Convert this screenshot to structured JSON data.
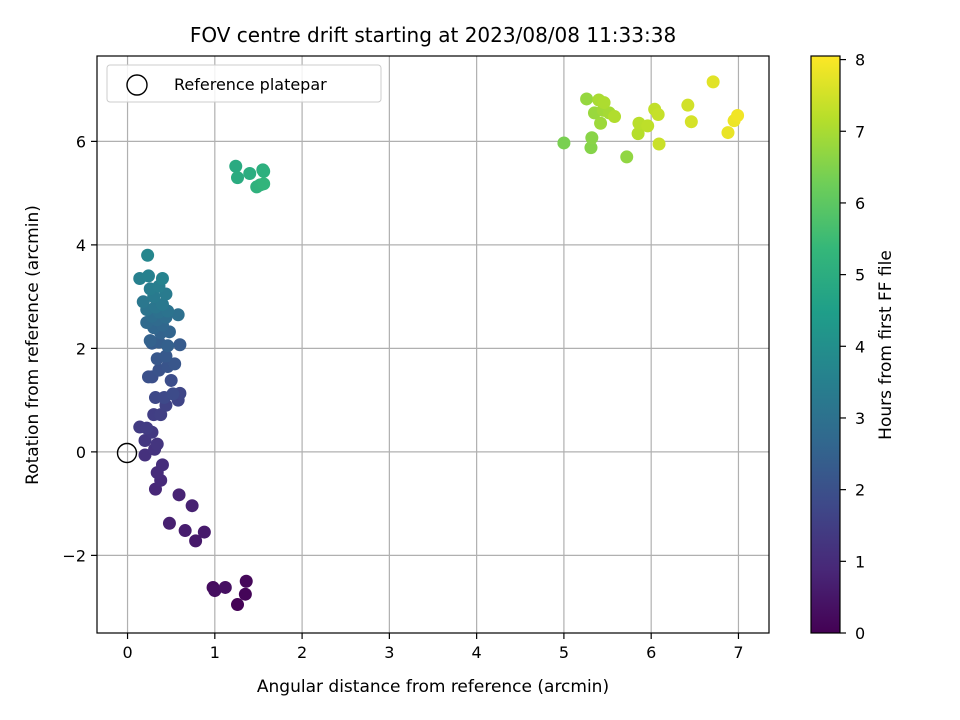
{
  "chart_data": {
    "type": "scatter",
    "title": "FOV centre drift starting at 2023/08/08 11:33:38",
    "xlabel": "Angular distance from reference (arcmin)",
    "ylabel": "Rotation from reference (arcmin)",
    "xlim": [
      -0.35,
      7.35
    ],
    "ylim": [
      -3.5,
      7.65
    ],
    "xticks": [
      0,
      1,
      2,
      3,
      4,
      5,
      6,
      7
    ],
    "yticks": [
      -2,
      0,
      2,
      4,
      6
    ],
    "xtick_labels": [
      "0",
      "1",
      "2",
      "3",
      "4",
      "5",
      "6",
      "7"
    ],
    "ytick_labels": [
      "−2",
      "0",
      "2",
      "4",
      "6"
    ],
    "grid": true,
    "legend": {
      "position": "top-left",
      "entries": [
        "Reference platepar"
      ]
    },
    "reference": {
      "x": 0,
      "y": 0,
      "label": "Reference platepar"
    },
    "colorbar": {
      "label": "Hours from first FF file",
      "min": 0,
      "max": 8.05,
      "ticks": [
        0,
        1,
        2,
        3,
        4,
        5,
        6,
        7,
        8
      ],
      "tick_labels": [
        "0",
        "1",
        "2",
        "3",
        "4",
        "5",
        "6",
        "7",
        "8"
      ],
      "colormap": "viridis"
    },
    "points": [
      {
        "x": 1.26,
        "y": -2.95,
        "t": 0.05
      },
      {
        "x": 1.35,
        "y": -2.75,
        "t": 0.1
      },
      {
        "x": 1.36,
        "y": -2.5,
        "t": 0.15
      },
      {
        "x": 0.98,
        "y": -2.62,
        "t": 0.25
      },
      {
        "x": 1.0,
        "y": -2.68,
        "t": 0.3
      },
      {
        "x": 1.12,
        "y": -2.62,
        "t": 0.35
      },
      {
        "x": 0.78,
        "y": -1.72,
        "t": 0.55
      },
      {
        "x": 0.88,
        "y": -1.55,
        "t": 0.6
      },
      {
        "x": 0.66,
        "y": -1.52,
        "t": 0.65
      },
      {
        "x": 0.48,
        "y": -1.38,
        "t": 0.7
      },
      {
        "x": 0.74,
        "y": -1.04,
        "t": 0.75
      },
      {
        "x": 0.59,
        "y": -0.83,
        "t": 0.8
      },
      {
        "x": 0.32,
        "y": -0.72,
        "t": 0.9
      },
      {
        "x": 0.38,
        "y": -0.55,
        "t": 0.95
      },
      {
        "x": 0.34,
        "y": -0.4,
        "t": 1.0
      },
      {
        "x": 0.4,
        "y": -0.25,
        "t": 1.05
      },
      {
        "x": 0.2,
        "y": -0.06,
        "t": 1.15
      },
      {
        "x": 0.31,
        "y": 0.05,
        "t": 1.2
      },
      {
        "x": 0.34,
        "y": 0.15,
        "t": 1.25
      },
      {
        "x": 0.2,
        "y": 0.22,
        "t": 1.3
      },
      {
        "x": 0.28,
        "y": 0.38,
        "t": 1.35
      },
      {
        "x": 0.14,
        "y": 0.48,
        "t": 1.4
      },
      {
        "x": 0.22,
        "y": 0.46,
        "t": 1.45
      },
      {
        "x": 0.3,
        "y": 0.72,
        "t": 1.5
      },
      {
        "x": 0.38,
        "y": 0.72,
        "t": 1.55
      },
      {
        "x": 0.44,
        "y": 0.9,
        "t": 1.6
      },
      {
        "x": 0.58,
        "y": 1.0,
        "t": 1.65
      },
      {
        "x": 0.6,
        "y": 1.13,
        "t": 1.7
      },
      {
        "x": 0.32,
        "y": 1.05,
        "t": 1.75
      },
      {
        "x": 0.42,
        "y": 1.05,
        "t": 1.8
      },
      {
        "x": 0.52,
        "y": 1.12,
        "t": 1.85
      },
      {
        "x": 0.5,
        "y": 1.38,
        "t": 1.9
      },
      {
        "x": 0.28,
        "y": 1.45,
        "t": 1.95
      },
      {
        "x": 0.24,
        "y": 1.45,
        "t": 2.0
      },
      {
        "x": 0.36,
        "y": 1.58,
        "t": 2.05
      },
      {
        "x": 0.46,
        "y": 1.65,
        "t": 2.1
      },
      {
        "x": 0.54,
        "y": 1.7,
        "t": 2.15
      },
      {
        "x": 0.34,
        "y": 1.8,
        "t": 2.2
      },
      {
        "x": 0.44,
        "y": 1.85,
        "t": 2.25
      },
      {
        "x": 0.6,
        "y": 2.07,
        "t": 2.3
      },
      {
        "x": 0.28,
        "y": 2.1,
        "t": 2.35
      },
      {
        "x": 0.36,
        "y": 2.12,
        "t": 2.4
      },
      {
        "x": 0.46,
        "y": 2.05,
        "t": 2.45
      },
      {
        "x": 0.26,
        "y": 2.15,
        "t": 2.5
      },
      {
        "x": 0.38,
        "y": 2.3,
        "t": 2.55
      },
      {
        "x": 0.48,
        "y": 2.32,
        "t": 2.6
      },
      {
        "x": 0.3,
        "y": 2.4,
        "t": 2.65
      },
      {
        "x": 0.4,
        "y": 2.45,
        "t": 2.7
      },
      {
        "x": 0.22,
        "y": 2.5,
        "t": 2.75
      },
      {
        "x": 0.34,
        "y": 2.55,
        "t": 2.8
      },
      {
        "x": 0.44,
        "y": 2.6,
        "t": 2.85
      },
      {
        "x": 0.28,
        "y": 2.62,
        "t": 2.9
      },
      {
        "x": 0.58,
        "y": 2.65,
        "t": 2.95
      },
      {
        "x": 0.36,
        "y": 2.7,
        "t": 3.0
      },
      {
        "x": 0.46,
        "y": 2.72,
        "t": 3.05
      },
      {
        "x": 0.22,
        "y": 2.75,
        "t": 3.1
      },
      {
        "x": 0.32,
        "y": 2.8,
        "t": 3.15
      },
      {
        "x": 0.18,
        "y": 2.9,
        "t": 3.2
      },
      {
        "x": 0.4,
        "y": 2.85,
        "t": 3.25
      },
      {
        "x": 0.3,
        "y": 3.0,
        "t": 3.3
      },
      {
        "x": 0.44,
        "y": 3.05,
        "t": 3.35
      },
      {
        "x": 0.26,
        "y": 3.15,
        "t": 3.4
      },
      {
        "x": 0.36,
        "y": 3.2,
        "t": 3.45
      },
      {
        "x": 0.14,
        "y": 3.35,
        "t": 3.5
      },
      {
        "x": 0.24,
        "y": 3.4,
        "t": 3.55
      },
      {
        "x": 0.4,
        "y": 3.35,
        "t": 3.6
      },
      {
        "x": 0.23,
        "y": 3.8,
        "t": 3.7
      },
      {
        "x": 1.24,
        "y": 5.52,
        "t": 4.9
      },
      {
        "x": 1.26,
        "y": 5.3,
        "t": 4.95
      },
      {
        "x": 1.4,
        "y": 5.38,
        "t": 5.0
      },
      {
        "x": 1.55,
        "y": 5.45,
        "t": 5.05
      },
      {
        "x": 1.56,
        "y": 5.42,
        "t": 5.1
      },
      {
        "x": 1.48,
        "y": 5.12,
        "t": 5.15
      },
      {
        "x": 1.52,
        "y": 5.16,
        "t": 5.2
      },
      {
        "x": 1.56,
        "y": 5.18,
        "t": 5.25
      },
      {
        "x": 5.0,
        "y": 5.97,
        "t": 6.4
      },
      {
        "x": 5.31,
        "y": 5.88,
        "t": 6.55
      },
      {
        "x": 5.32,
        "y": 6.07,
        "t": 6.6
      },
      {
        "x": 5.72,
        "y": 5.7,
        "t": 6.7
      },
      {
        "x": 5.26,
        "y": 6.82,
        "t": 6.75
      },
      {
        "x": 5.35,
        "y": 6.55,
        "t": 6.8
      },
      {
        "x": 5.42,
        "y": 6.35,
        "t": 6.85
      },
      {
        "x": 5.45,
        "y": 6.6,
        "t": 6.9
      },
      {
        "x": 5.52,
        "y": 6.55,
        "t": 6.95
      },
      {
        "x": 5.4,
        "y": 6.8,
        "t": 7.0
      },
      {
        "x": 5.46,
        "y": 6.75,
        "t": 7.05
      },
      {
        "x": 5.58,
        "y": 6.48,
        "t": 7.1
      },
      {
        "x": 5.85,
        "y": 6.15,
        "t": 7.15
      },
      {
        "x": 5.86,
        "y": 6.35,
        "t": 7.2
      },
      {
        "x": 5.96,
        "y": 6.3,
        "t": 7.25
      },
      {
        "x": 6.04,
        "y": 6.62,
        "t": 7.3
      },
      {
        "x": 6.08,
        "y": 6.52,
        "t": 7.35
      },
      {
        "x": 6.09,
        "y": 5.95,
        "t": 7.4
      },
      {
        "x": 6.42,
        "y": 6.7,
        "t": 7.5
      },
      {
        "x": 6.46,
        "y": 6.38,
        "t": 7.55
      },
      {
        "x": 6.71,
        "y": 7.15,
        "t": 7.7
      },
      {
        "x": 6.88,
        "y": 6.17,
        "t": 7.8
      },
      {
        "x": 6.95,
        "y": 6.4,
        "t": 7.85
      },
      {
        "x": 6.99,
        "y": 6.5,
        "t": 7.9
      }
    ]
  }
}
